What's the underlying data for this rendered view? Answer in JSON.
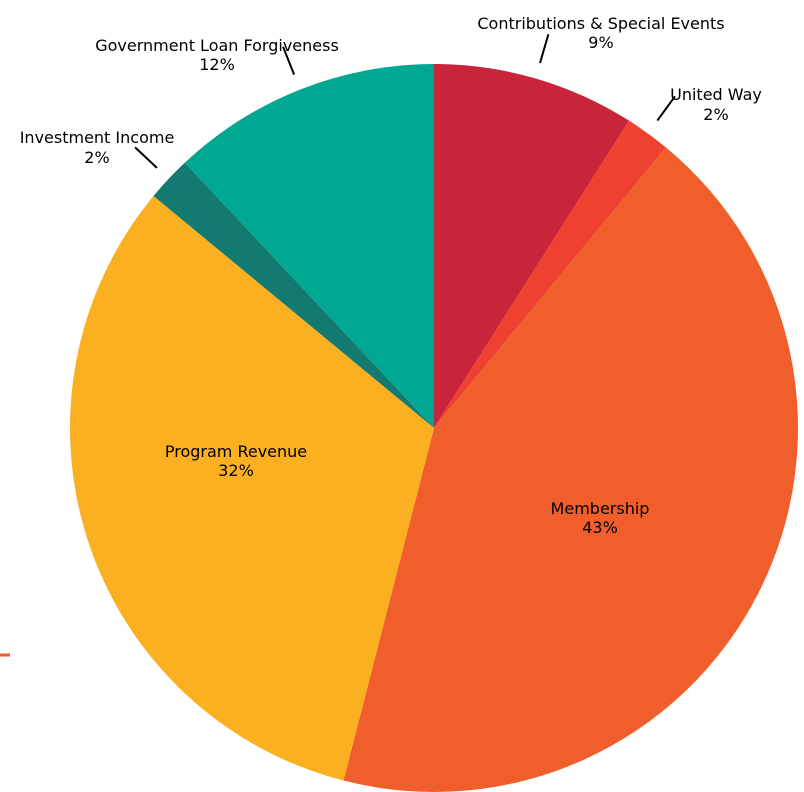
{
  "chart_data": {
    "type": "pie",
    "title": "",
    "slices": [
      {
        "label": "Contributions & Special Events",
        "value": 9,
        "value_label": "9%",
        "color": "#c8243a"
      },
      {
        "label": "United Way",
        "value": 2,
        "value_label": "2%",
        "color": "#ee4130"
      },
      {
        "label": "Membership",
        "value": 43,
        "value_label": "43%",
        "color": "#f05f2b"
      },
      {
        "label": "Program Revenue",
        "value": 32,
        "value_label": "32%",
        "color": "#fbb021"
      },
      {
        "label": "Investment Income",
        "value": 2,
        "value_label": "2%",
        "color": "#127a70"
      },
      {
        "label": "Government Loan Forgiveness",
        "value": 12,
        "value_label": "12%",
        "color": "#00a891"
      }
    ],
    "start_angle_deg": 0,
    "direction": "clockwise",
    "label_placement": [
      "outside",
      "outside",
      "inside",
      "inside",
      "outside",
      "outside"
    ]
  },
  "decoration": {
    "accent_color": "#f15a29"
  }
}
